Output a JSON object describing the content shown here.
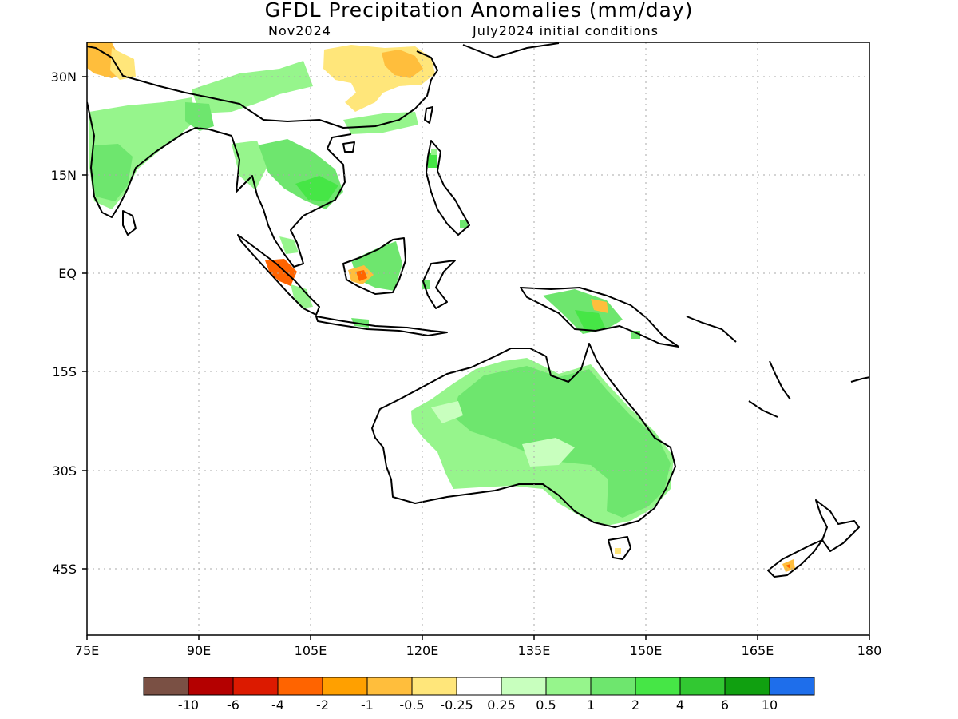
{
  "title": "GFDL Precipitation Anomalies (mm/day)",
  "subtitle_left": "Nov2024",
  "subtitle_right": "July2024 initial conditions",
  "lon_ticks": [
    "75E",
    "90E",
    "105E",
    "120E",
    "135E",
    "150E",
    "165E",
    "180"
  ],
  "lat_ticks": [
    "30N",
    "15N",
    "EQ",
    "15S",
    "30S",
    "45S"
  ],
  "colorbar": {
    "colors": [
      "#7a5044",
      "#b40000",
      "#dc1a00",
      "#ff6400",
      "#ffa000",
      "#ffbe3c",
      "#ffe67a",
      "#ffffff",
      "#c8ffbe",
      "#96f58c",
      "#6ee66e",
      "#46e646",
      "#32c832",
      "#10a010",
      "#1e6eeb"
    ],
    "labels": [
      "-10",
      "-6",
      "-4",
      "-2",
      "-1",
      "-0.5",
      "-0.25",
      "0.25",
      "0.5",
      "1",
      "2",
      "4",
      "6",
      "10"
    ]
  }
}
